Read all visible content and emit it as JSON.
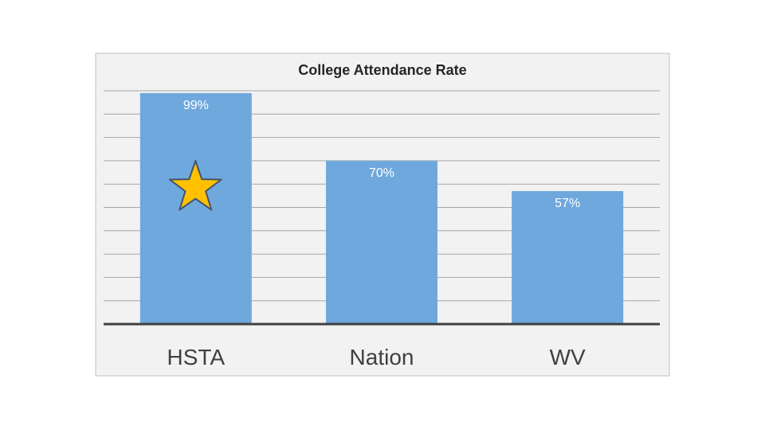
{
  "chart_data": {
    "type": "bar",
    "title": "College Attendance Rate",
    "categories": [
      "HSTA",
      "Nation",
      "WV"
    ],
    "values": [
      99,
      70,
      57
    ],
    "data_labels": [
      "99%",
      "70%",
      "57%"
    ],
    "ylim": [
      0,
      100
    ],
    "grid": true,
    "legend": "none",
    "highlight": {
      "category": "HSTA",
      "marker": "star-icon",
      "color": "#FFC000"
    }
  },
  "colors": {
    "bar": "#6FA8DC",
    "panel": "#F2F2F2",
    "panel_border": "#BFBFBF",
    "gridline": "#A6A6A6",
    "axis": "#404040",
    "star_fill": "#FFC000",
    "star_stroke": "#44546A"
  }
}
